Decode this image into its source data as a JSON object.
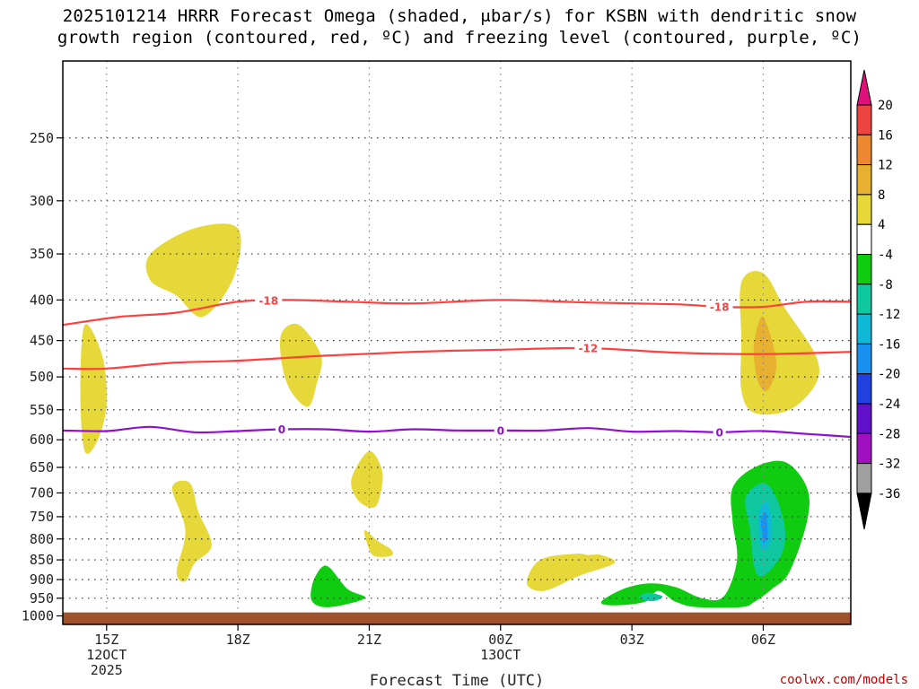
{
  "chart_data": {
    "type": "contour",
    "title_line1": "2025101214 HRRR Forecast Omega (shaded, μbar/s) for KSBN with dendritic snow",
    "title_line2": "growth region (contoured, red, ºC) and freezing level (contoured, purple, ºC)",
    "xlabel": "Forecast Time (UTC)",
    "credit": "coolwx.com/models",
    "x_ticks": [
      {
        "hour": 15,
        "label": "15Z",
        "sub1": "12OCT",
        "sub2": "2025"
      },
      {
        "hour": 18,
        "label": "18Z",
        "sub1": "",
        "sub2": ""
      },
      {
        "hour": 21,
        "label": "21Z",
        "sub1": "",
        "sub2": ""
      },
      {
        "hour": 24,
        "label": "00Z",
        "sub1": "13OCT",
        "sub2": ""
      },
      {
        "hour": 27,
        "label": "03Z",
        "sub1": "",
        "sub2": ""
      },
      {
        "hour": 30,
        "label": "06Z",
        "sub1": "",
        "sub2": ""
      }
    ],
    "x_range_hours": [
      14.0,
      32.0
    ],
    "y_axis": "pressure (mb), log scale, inverted",
    "y_ticks": [
      "250",
      "300",
      "350",
      "400",
      "450",
      "500",
      "550",
      "600",
      "650",
      "700",
      "750",
      "800",
      "850",
      "900",
      "950",
      "1000"
    ],
    "y_range_mb": [
      200,
      1025
    ],
    "grid": true,
    "ground_level_mb": 990,
    "colorbar": {
      "orientation": "vertical",
      "placement": "right",
      "labels": [
        "20",
        "16",
        "12",
        "8",
        "4",
        "-4",
        "-8",
        "-12",
        "-16",
        "-20",
        "-24",
        "-28",
        "-32",
        "-36"
      ],
      "bins": [
        {
          "lo": 20,
          "hi": null,
          "color": "#e0107a"
        },
        {
          "lo": 16,
          "hi": 20,
          "color": "#ee4440"
        },
        {
          "lo": 12,
          "hi": 16,
          "color": "#ee8830"
        },
        {
          "lo": 8,
          "hi": 12,
          "color": "#e8b030"
        },
        {
          "lo": 4,
          "hi": 8,
          "color": "#e6d838"
        },
        {
          "lo": -4,
          "hi": 4,
          "color": "#ffffff"
        },
        {
          "lo": -8,
          "hi": -4,
          "color": "#10cc10"
        },
        {
          "lo": -12,
          "hi": -8,
          "color": "#10c8a0"
        },
        {
          "lo": -16,
          "hi": -12,
          "color": "#10b8d8"
        },
        {
          "lo": -20,
          "hi": -16,
          "color": "#1890f0"
        },
        {
          "lo": -24,
          "hi": -20,
          "color": "#2040e0"
        },
        {
          "lo": -28,
          "hi": -24,
          "color": "#6010c8"
        },
        {
          "lo": -32,
          "hi": -28,
          "color": "#a010c0"
        },
        {
          "lo": -36,
          "hi": -32,
          "color": "#a0a0a0"
        },
        {
          "lo": null,
          "hi": -36,
          "color": "#000000"
        }
      ]
    },
    "omega_regions": [
      {
        "bin": "4 to 8",
        "color": "#e6d838",
        "points": [
          [
            14.5,
            430
          ],
          [
            14.9,
            470
          ],
          [
            15.0,
            540
          ],
          [
            14.8,
            600
          ],
          [
            14.5,
            620
          ],
          [
            14.4,
            520
          ]
        ]
      },
      {
        "bin": "4 to 8",
        "color": "#e6d838",
        "points": [
          [
            16.0,
            350
          ],
          [
            17.0,
            325
          ],
          [
            18.0,
            325
          ],
          [
            17.9,
            375
          ],
          [
            17.2,
            420
          ],
          [
            16.6,
            395
          ],
          [
            16.0,
            378
          ]
        ]
      },
      {
        "bin": "4 to 8",
        "color": "#e6d838",
        "points": [
          [
            19.0,
            440
          ],
          [
            19.4,
            430
          ],
          [
            19.9,
            470
          ],
          [
            19.8,
            510
          ],
          [
            19.6,
            545
          ],
          [
            19.2,
            520
          ],
          [
            19.0,
            480
          ]
        ]
      },
      {
        "bin": "4 to 8",
        "color": "#e6d838",
        "points": [
          [
            20.6,
            670
          ],
          [
            21.0,
            620
          ],
          [
            21.3,
            660
          ],
          [
            21.2,
            720
          ],
          [
            21.0,
            730
          ],
          [
            20.7,
            710
          ]
        ]
      },
      {
        "bin": "4 to 8",
        "color": "#e6d838",
        "points": [
          [
            20.9,
            780
          ],
          [
            21.2,
            805
          ],
          [
            21.5,
            825
          ],
          [
            21.5,
            840
          ],
          [
            21.1,
            840
          ],
          [
            20.95,
            810
          ]
        ]
      },
      {
        "bin": "4 to 8",
        "color": "#e6d838",
        "points": [
          [
            16.5,
            690
          ],
          [
            16.9,
            680
          ],
          [
            17.1,
            740
          ],
          [
            17.4,
            815
          ],
          [
            17.0,
            860
          ],
          [
            16.8,
            905
          ],
          [
            16.6,
            880
          ],
          [
            16.8,
            780
          ]
        ]
      },
      {
        "bin": "4 to 8",
        "color": "#e6d838",
        "points": [
          [
            25.7,
            835
          ],
          [
            26.0,
            838
          ],
          [
            26.3,
            838
          ],
          [
            26.6,
            858
          ],
          [
            25.8,
            890
          ],
          [
            25.0,
            930
          ],
          [
            24.6,
            910
          ],
          [
            24.9,
            850
          ]
        ]
      },
      {
        "bin": "4 to 8",
        "color": "#e6d838",
        "points": [
          [
            29.5,
            380
          ],
          [
            30.0,
            370
          ],
          [
            30.5,
            410
          ],
          [
            31.2,
            470
          ],
          [
            31.2,
            510
          ],
          [
            30.6,
            550
          ],
          [
            29.8,
            555
          ],
          [
            29.5,
            520
          ],
          [
            29.5,
            450
          ]
        ]
      },
      {
        "bin": "8 to 12",
        "color": "#e8b030",
        "points": [
          [
            29.8,
            450
          ],
          [
            30.0,
            420
          ],
          [
            30.3,
            480
          ],
          [
            30.1,
            520
          ],
          [
            29.9,
            510
          ],
          [
            29.8,
            480
          ]
        ]
      },
      {
        "bin": "-8 to -4",
        "color": "#10cc10",
        "points": [
          [
            19.7,
            912
          ],
          [
            19.9,
            870
          ],
          [
            20.1,
            870
          ],
          [
            20.5,
            925
          ],
          [
            20.9,
            950
          ],
          [
            20.1,
            975
          ],
          [
            19.7,
            960
          ]
        ]
      },
      {
        "bin": "-8 to -4",
        "color": "#10cc10",
        "points": [
          [
            29.3,
            690
          ],
          [
            29.8,
            650
          ],
          [
            30.5,
            640
          ],
          [
            31.0,
            690
          ],
          [
            31.0,
            760
          ],
          [
            30.6,
            880
          ],
          [
            30.2,
            925
          ],
          [
            29.8,
            960
          ],
          [
            29.5,
            975
          ],
          [
            28.5,
            975
          ],
          [
            28.0,
            960
          ],
          [
            27.6,
            930
          ],
          [
            27.3,
            960
          ],
          [
            26.6,
            970
          ],
          [
            26.3,
            960
          ],
          [
            26.8,
            925
          ],
          [
            27.4,
            910
          ],
          [
            28.0,
            920
          ],
          [
            28.6,
            950
          ],
          [
            29.1,
            945
          ],
          [
            29.4,
            850
          ],
          [
            29.3,
            760
          ]
        ]
      },
      {
        "bin": "-12 to -8",
        "color": "#10c8a0",
        "points": [
          [
            29.6,
            710
          ],
          [
            30.0,
            680
          ],
          [
            30.3,
            710
          ],
          [
            30.5,
            780
          ],
          [
            30.4,
            840
          ],
          [
            30.0,
            890
          ],
          [
            29.8,
            870
          ],
          [
            29.7,
            780
          ]
        ]
      },
      {
        "bin": "-12 to -8",
        "color": "#10c8a0",
        "points": [
          [
            27.2,
            942
          ],
          [
            27.4,
            935
          ],
          [
            27.7,
            945
          ],
          [
            27.5,
            958
          ],
          [
            27.2,
            952
          ]
        ]
      },
      {
        "bin": "-16 to -12",
        "color": "#10b8d8",
        "points": [
          [
            29.9,
            740
          ],
          [
            30.1,
            720
          ],
          [
            30.2,
            780
          ],
          [
            30.1,
            820
          ],
          [
            29.95,
            820
          ],
          [
            29.9,
            780
          ]
        ]
      },
      {
        "bin": "-20 to -16",
        "color": "#1890f0",
        "points": [
          [
            29.95,
            760
          ],
          [
            30.05,
            740
          ],
          [
            30.1,
            790
          ],
          [
            30.0,
            810
          ],
          [
            29.98,
            790
          ]
        ]
      }
    ],
    "temperature_contours": [
      {
        "value": "-18",
        "color": "#ff4040",
        "label_at_hours": [
          18.7,
          29.0
        ],
        "points": [
          [
            14.0,
            430
          ],
          [
            15.3,
            420
          ],
          [
            16.6,
            415
          ],
          [
            18.0,
            402
          ],
          [
            19.2,
            400
          ],
          [
            20.5,
            402
          ],
          [
            22.0,
            404
          ],
          [
            24.0,
            400
          ],
          [
            26.0,
            403
          ],
          [
            28.0,
            405
          ],
          [
            29.0,
            408
          ],
          [
            30.0,
            408
          ],
          [
            31.0,
            402
          ],
          [
            32.0,
            402
          ]
        ]
      },
      {
        "value": "-12",
        "color": "#ff4040",
        "label_at_hours": [
          26.0
        ],
        "points": [
          [
            14.0,
            488
          ],
          [
            15.0,
            488
          ],
          [
            16.5,
            480
          ],
          [
            18.0,
            477
          ],
          [
            20.0,
            470
          ],
          [
            22.0,
            465
          ],
          [
            24.0,
            462
          ],
          [
            26.0,
            460
          ],
          [
            28.0,
            466
          ],
          [
            30.0,
            468
          ],
          [
            32.0,
            465
          ]
        ]
      },
      {
        "value": "0",
        "color": "#9010d0",
        "label_at_hours": [
          19.0,
          24.0,
          29.0
        ],
        "points": [
          [
            14.0,
            584
          ],
          [
            15.0,
            585
          ],
          [
            16.0,
            578
          ],
          [
            17.0,
            587
          ],
          [
            18.0,
            585
          ],
          [
            19.0,
            582
          ],
          [
            20.0,
            582
          ],
          [
            21.0,
            586
          ],
          [
            22.0,
            582
          ],
          [
            23.0,
            584
          ],
          [
            24.0,
            584
          ],
          [
            25.0,
            584
          ],
          [
            26.0,
            580
          ],
          [
            27.0,
            586
          ],
          [
            28.0,
            585
          ],
          [
            29.0,
            587
          ],
          [
            30.0,
            585
          ],
          [
            31.0,
            590
          ],
          [
            32.0,
            595
          ]
        ]
      }
    ]
  }
}
